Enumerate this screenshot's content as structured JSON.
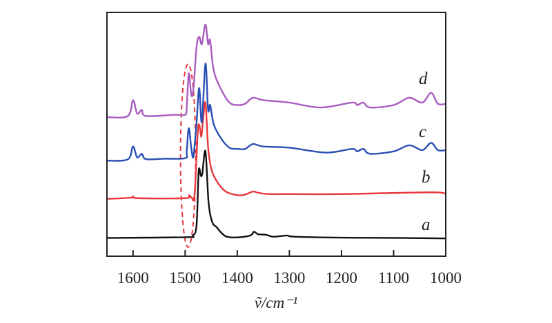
{
  "chart_data": {
    "type": "line",
    "title": "",
    "xlabel": "ṽ/cm⁻¹",
    "ylabel": "",
    "xlim": [
      1650,
      1000
    ],
    "x_reversed": true,
    "ylim": [
      0,
      10
    ],
    "y_ticks_shown": false,
    "grid": false,
    "legend": "none (curves labeled at right)",
    "xticks": [
      1600,
      1500,
      1400,
      1300,
      1200,
      1100,
      1000
    ],
    "xtick_labels": [
      "1600",
      "1500",
      "1400",
      "1300",
      "1200",
      "1100",
      "1000"
    ],
    "highlight": {
      "shape": "dashed-ellipse",
      "center_x": 1493,
      "color": "#e8383d"
    },
    "series": [
      {
        "name": "a",
        "color": "#111111",
        "points": [
          [
            1650,
            0.75
          ],
          [
            1500,
            0.78
          ],
          [
            1485,
            0.85
          ],
          [
            1478,
            1.3
          ],
          [
            1474,
            3.5
          ],
          [
            1470,
            3.3
          ],
          [
            1467,
            3.4
          ],
          [
            1461,
            4.3
          ],
          [
            1455,
            2.2
          ],
          [
            1448,
            1.4
          ],
          [
            1440,
            1.2
          ],
          [
            1430,
            0.95
          ],
          [
            1420,
            0.8
          ],
          [
            1400,
            0.77
          ],
          [
            1375,
            0.85
          ],
          [
            1368,
            1.0
          ],
          [
            1360,
            0.9
          ],
          [
            1345,
            0.88
          ],
          [
            1330,
            0.8
          ],
          [
            1305,
            0.85
          ],
          [
            1290,
            0.8
          ],
          [
            1200,
            0.76
          ],
          [
            1100,
            0.75
          ],
          [
            1000,
            0.73
          ]
        ]
      },
      {
        "name": "b",
        "color": "#e8383d",
        "points": [
          [
            1650,
            2.35
          ],
          [
            1605,
            2.4
          ],
          [
            1600,
            2.45
          ],
          [
            1590,
            2.38
          ],
          [
            1500,
            2.38
          ],
          [
            1493,
            2.5
          ],
          [
            1488,
            2.42
          ],
          [
            1482,
            2.5
          ],
          [
            1476,
            5.0
          ],
          [
            1473,
            5.4
          ],
          [
            1469,
            4.9
          ],
          [
            1466,
            5.5
          ],
          [
            1461,
            6.3
          ],
          [
            1456,
            4.5
          ],
          [
            1450,
            3.6
          ],
          [
            1440,
            3.1
          ],
          [
            1425,
            2.7
          ],
          [
            1410,
            2.55
          ],
          [
            1390,
            2.5
          ],
          [
            1370,
            2.65
          ],
          [
            1360,
            2.6
          ],
          [
            1340,
            2.55
          ],
          [
            1300,
            2.55
          ],
          [
            1200,
            2.55
          ],
          [
            1030,
            2.62
          ],
          [
            1000,
            2.56
          ]
        ]
      },
      {
        "name": "c",
        "color": "#2a4fb5",
        "points": [
          [
            1650,
            3.92
          ],
          [
            1610,
            3.97
          ],
          [
            1600,
            4.5
          ],
          [
            1592,
            4.05
          ],
          [
            1583,
            4.2
          ],
          [
            1575,
            3.98
          ],
          [
            1540,
            4.0
          ],
          [
            1500,
            4.02
          ],
          [
            1497,
            4.3
          ],
          [
            1493,
            5.25
          ],
          [
            1488,
            4.4
          ],
          [
            1484,
            4.1
          ],
          [
            1478,
            5.5
          ],
          [
            1473,
            6.9
          ],
          [
            1468,
            5.5
          ],
          [
            1461,
            7.9
          ],
          [
            1456,
            6.0
          ],
          [
            1452,
            6.2
          ],
          [
            1445,
            5.4
          ],
          [
            1430,
            4.8
          ],
          [
            1415,
            4.45
          ],
          [
            1400,
            4.4
          ],
          [
            1385,
            4.4
          ],
          [
            1370,
            4.6
          ],
          [
            1350,
            4.5
          ],
          [
            1300,
            4.45
          ],
          [
            1230,
            4.25
          ],
          [
            1180,
            4.4
          ],
          [
            1170,
            4.3
          ],
          [
            1158,
            4.4
          ],
          [
            1145,
            4.2
          ],
          [
            1100,
            4.3
          ],
          [
            1070,
            4.55
          ],
          [
            1045,
            4.35
          ],
          [
            1028,
            4.65
          ],
          [
            1015,
            4.35
          ],
          [
            1000,
            4.35
          ]
        ]
      },
      {
        "name": "d",
        "color": "#a95cc0",
        "points": [
          [
            1650,
            5.7
          ],
          [
            1610,
            5.75
          ],
          [
            1600,
            6.4
          ],
          [
            1592,
            5.85
          ],
          [
            1583,
            6.0
          ],
          [
            1575,
            5.75
          ],
          [
            1520,
            5.8
          ],
          [
            1500,
            5.8
          ],
          [
            1497,
            6.1
          ],
          [
            1493,
            7.5
          ],
          [
            1488,
            6.6
          ],
          [
            1484,
            6.9
          ],
          [
            1478,
            8.6
          ],
          [
            1473,
            9.0
          ],
          [
            1468,
            8.7
          ],
          [
            1461,
            9.5
          ],
          [
            1456,
            8.7
          ],
          [
            1452,
            8.85
          ],
          [
            1445,
            7.6
          ],
          [
            1430,
            6.8
          ],
          [
            1415,
            6.3
          ],
          [
            1400,
            6.2
          ],
          [
            1385,
            6.25
          ],
          [
            1370,
            6.5
          ],
          [
            1350,
            6.4
          ],
          [
            1300,
            6.3
          ],
          [
            1240,
            6.1
          ],
          [
            1180,
            6.3
          ],
          [
            1170,
            6.2
          ],
          [
            1158,
            6.3
          ],
          [
            1145,
            6.1
          ],
          [
            1100,
            6.2
          ],
          [
            1070,
            6.5
          ],
          [
            1045,
            6.3
          ],
          [
            1028,
            6.7
          ],
          [
            1015,
            6.25
          ],
          [
            1000,
            6.25
          ]
        ]
      }
    ]
  }
}
